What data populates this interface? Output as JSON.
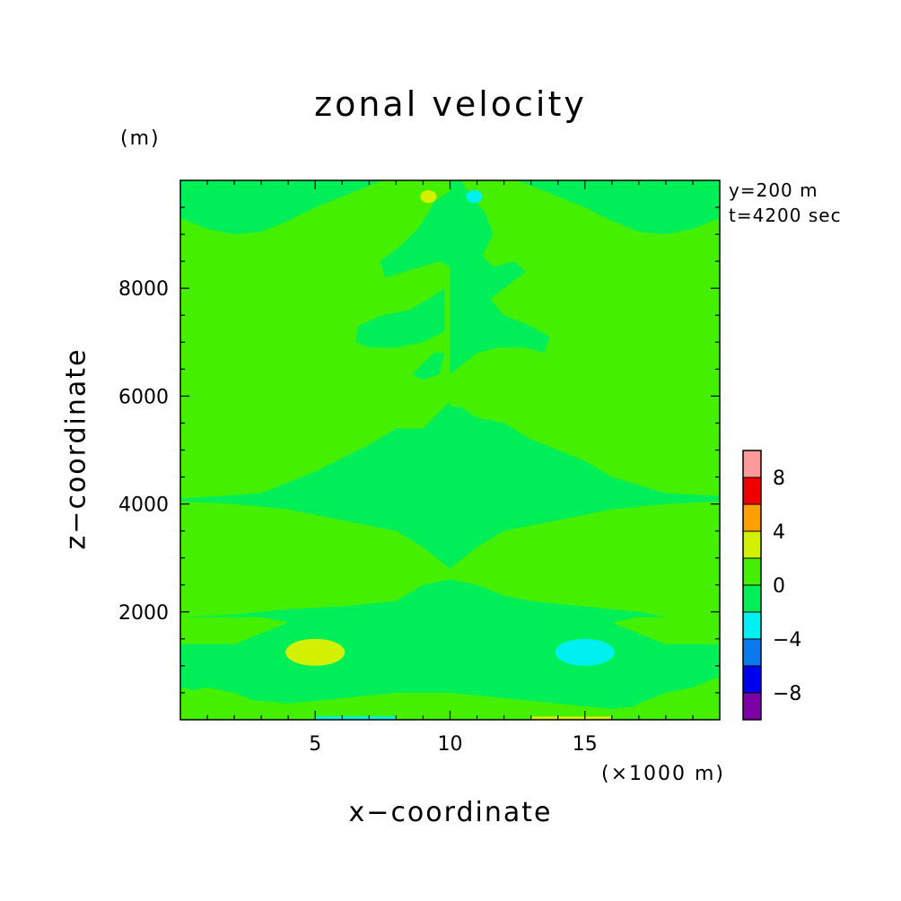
{
  "chart_data": {
    "type": "heatmap",
    "title": "zonal velocity",
    "xlabel": "x−coordinate",
    "ylabel": "z−coordinate",
    "x_unit": "(×1000 m)",
    "y_unit": "(m)",
    "annotations": [
      "y=200 m",
      "t=4200 sec"
    ],
    "xlim": [
      0,
      20
    ],
    "ylim": [
      0,
      10000
    ],
    "x_ticks": [
      5,
      10,
      15
    ],
    "y_ticks": [
      2000,
      4000,
      6000,
      8000
    ],
    "colorbar": {
      "levels": [
        -10,
        -8,
        -6,
        -4,
        -2,
        0,
        2,
        4,
        6,
        8,
        10
      ],
      "labels": [
        -8,
        -4,
        0,
        4,
        8
      ],
      "colors": [
        "#7a00a8",
        "#0000ee",
        "#0a78ee",
        "#00f0f0",
        "#00ee58",
        "#44f000",
        "#d2f000",
        "#ffa000",
        "#ee0000",
        "#ff9a9a"
      ]
    },
    "field": {
      "background_value_range": [
        0,
        2
      ],
      "regions": [
        {
          "value_range": [
            -2,
            0
          ],
          "description": "x < 10 upper band",
          "x": [
            0,
            10
          ],
          "z": [
            8800,
            10000
          ]
        },
        {
          "value_range": [
            -2,
            0
          ],
          "description": "x > 10 upper band",
          "x": [
            10,
            20
          ],
          "z": [
            8800,
            10000
          ]
        },
        {
          "value_range": [
            -2,
            0
          ],
          "x": [
            0,
            20
          ],
          "z": [
            4000,
            5600
          ]
        },
        {
          "value_range": [
            -2,
            0
          ],
          "x": [
            0,
            20
          ],
          "z": [
            0,
            2000
          ]
        },
        {
          "value_range": [
            2,
            4
          ],
          "x": [
            4,
            6
          ],
          "z": [
            1000,
            1600
          ]
        },
        {
          "value_range": [
            -4,
            -2
          ],
          "x": [
            14,
            16
          ],
          "z": [
            1000,
            1600
          ]
        },
        {
          "value_range": [
            2,
            4
          ],
          "x": [
            9,
            9.6
          ],
          "z": [
            9600,
            9800
          ]
        },
        {
          "value_range": [
            -4,
            -2
          ],
          "x": [
            10.5,
            11.1
          ],
          "z": [
            9600,
            9800
          ]
        }
      ]
    }
  }
}
